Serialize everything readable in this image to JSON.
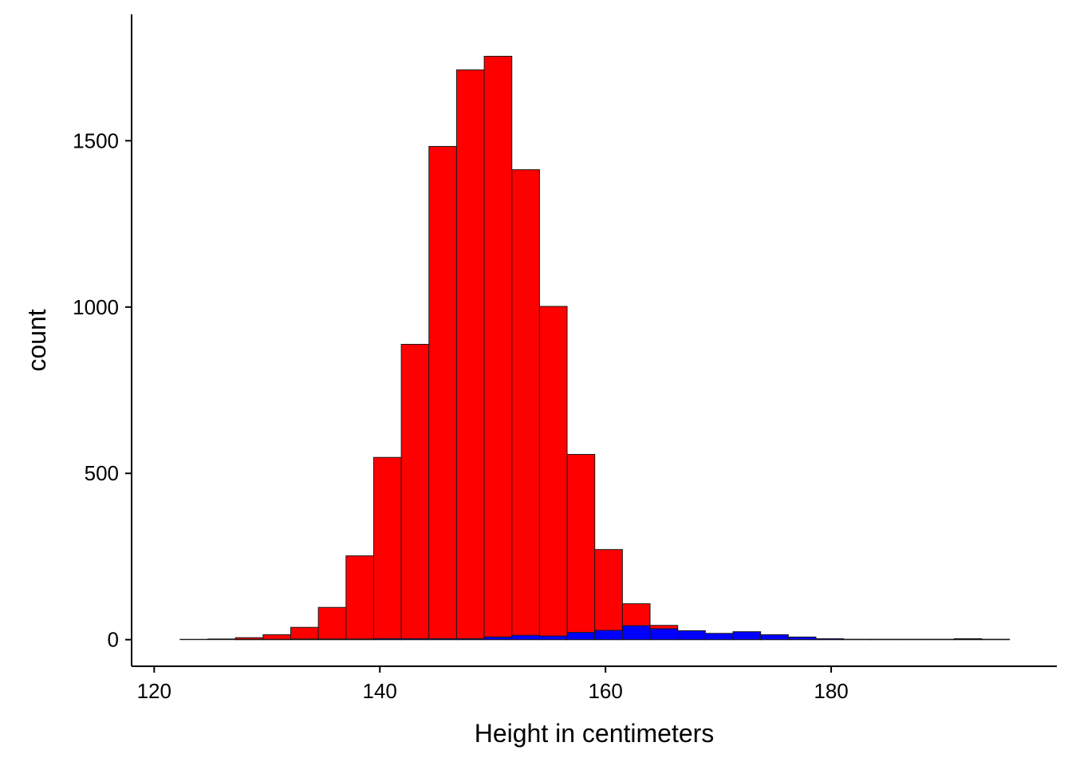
{
  "chart_data": {
    "type": "bar",
    "subtype": "histogram-overlay",
    "title": "",
    "xlabel": "Height in centimeters",
    "ylabel": "count",
    "xlim": [
      118,
      200
    ],
    "ylim": [
      -80,
      1880
    ],
    "x_ticks": [
      120,
      140,
      160,
      180
    ],
    "y_ticks": [
      0,
      500,
      1000,
      1500
    ],
    "grid": false,
    "legend": "none",
    "bin_width": 2.45,
    "bin_edges": [
      122.3,
      124.75,
      127.2,
      129.65,
      132.1,
      134.55,
      137.0,
      139.45,
      141.9,
      144.35,
      146.8,
      149.25,
      151.7,
      154.15,
      156.6,
      159.05,
      161.5,
      163.95,
      166.4,
      168.85,
      171.3,
      173.75,
      176.2,
      178.65,
      181.1,
      183.55,
      186.0,
      188.45,
      190.9,
      193.35,
      195.8
    ],
    "series": [
      {
        "color": "#ff0000",
        "values": [
          1,
          2,
          6,
          15,
          37,
          97,
          252,
          548,
          888,
          1483,
          1713,
          1754,
          1413,
          1002,
          557,
          271,
          108,
          43,
          12,
          5,
          2,
          2,
          1,
          1,
          1,
          1,
          1,
          1,
          3,
          1
        ]
      },
      {
        "color": "#0000ff",
        "values": [
          0,
          0,
          1,
          1,
          2,
          2,
          2,
          3,
          3,
          3,
          3,
          8,
          13,
          11,
          22,
          28,
          42,
          33,
          27,
          19,
          24,
          15,
          8,
          3,
          1,
          1,
          1,
          1,
          2,
          1
        ]
      }
    ]
  }
}
